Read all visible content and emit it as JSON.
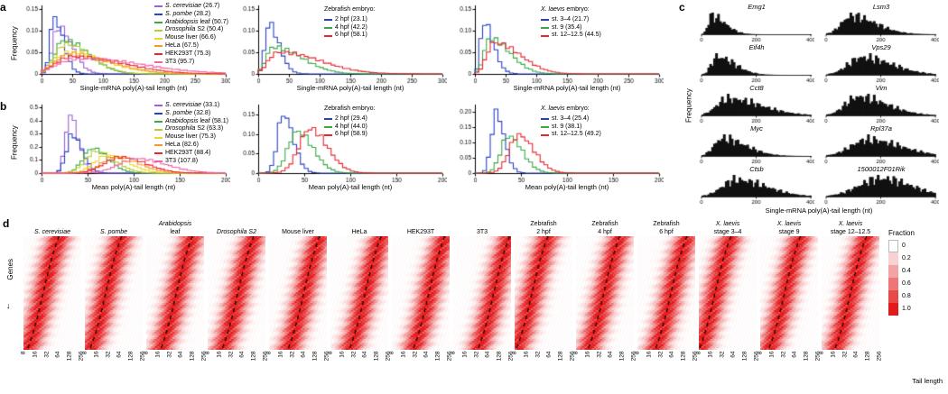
{
  "chart_data": {
    "panel_a": {
      "label": "a",
      "ylabel": "Frequency",
      "type": "step-histogram",
      "charts": [
        {
          "xlabel": "Single-mRNA poly(A)-tail length (nt)",
          "xlim": [
            0,
            300
          ],
          "ylim": [
            0,
            0.158
          ],
          "xticks": [
            0,
            50,
            100,
            150,
            200,
            250,
            300
          ],
          "xtick_labels": [
            "0",
            "50",
            "100",
            "150",
            "200",
            "250",
            "300"
          ],
          "yticks": [
            0,
            0.05,
            0.1,
            0.15
          ],
          "ytick_labels": [
            "0",
            "0.05",
            "0.10",
            "0.15"
          ],
          "legend": {
            "heading_italic": "",
            "heading_rest": ""
          },
          "series": [
            {
              "italic": "S. cerevisiae",
              "rest": " (26.7)",
              "mean": 26.7,
              "color": "#9e5fd0",
              "mode": 28,
              "peak": 0.112,
              "wl": 10,
              "wr": 22
            },
            {
              "italic": "S. pombe",
              "rest": " (28.2)",
              "mean": 28.2,
              "color": "#2840c4",
              "mode": 20,
              "peak": 0.138,
              "wl": 6,
              "wr": 15
            },
            {
              "italic": "Arabidopsis",
              "rest": " leaf (50.7)",
              "mean": 50.7,
              "color": "#39a845",
              "mode": 35,
              "peak": 0.078,
              "wl": 14,
              "wr": 40
            },
            {
              "italic": "Drosophila",
              "rest": " S2 (50.4)",
              "mean": 50.4,
              "color": "#b8cc2e",
              "mode": 38,
              "peak": 0.066,
              "wl": 16,
              "wr": 42
            },
            {
              "italic": "",
              "rest": "Mouse liver (66.6)",
              "mean": 66.6,
              "color": "#f2d22b",
              "mode": 45,
              "peak": 0.048,
              "wl": 22,
              "wr": 62
            },
            {
              "italic": "",
              "rest": "HeLa (67.5)",
              "mean": 67.5,
              "color": "#f29b2a",
              "mode": 48,
              "peak": 0.047,
              "wl": 24,
              "wr": 64
            },
            {
              "italic": "",
              "rest": "HEK293T (75.3)",
              "mean": 75.3,
              "color": "#e8262d",
              "mode": 50,
              "peak": 0.042,
              "wl": 26,
              "wr": 78
            },
            {
              "italic": "",
              "rest": "3T3 (95.7)",
              "mean": 95.7,
              "color": "#f263a6",
              "mode": 55,
              "peak": 0.036,
              "wl": 30,
              "wr": 105
            }
          ]
        },
        {
          "xlabel": "Single-mRNA poly(A)-tail length (nt)",
          "xlim": [
            0,
            300
          ],
          "ylim": [
            0,
            0.158
          ],
          "xticks": [
            0,
            50,
            100,
            150,
            200,
            250,
            300
          ],
          "xtick_labels": [
            "0",
            "50",
            "100",
            "150",
            "200",
            "250",
            "300"
          ],
          "yticks": [
            0,
            0.05,
            0.1,
            0.15
          ],
          "ytick_labels": [
            "0",
            "0.05",
            "0.10",
            "0.15"
          ],
          "legend": {
            "heading_italic": "",
            "heading_rest": "Zebrafish embryo:"
          },
          "series": [
            {
              "italic": "",
              "rest": "2 hpf (23.1)",
              "mean": 23.1,
              "color": "#2840c4",
              "mode": 17,
              "peak": 0.118,
              "wl": 6,
              "wr": 17
            },
            {
              "italic": "",
              "rest": "4 hpf (42.2)",
              "mean": 42.2,
              "color": "#39a845",
              "mode": 24,
              "peak": 0.065,
              "wl": 11,
              "wr": 45
            },
            {
              "italic": "",
              "rest": "6 hpf (58.1)",
              "mean": 58.1,
              "color": "#e8262d",
              "mode": 30,
              "peak": 0.05,
              "wl": 14,
              "wr": 68
            }
          ]
        },
        {
          "xlabel": "Single-mRNA poly(A)-tail length (nt)",
          "xlim": [
            0,
            300
          ],
          "ylim": [
            0,
            0.158
          ],
          "xticks": [
            0,
            50,
            100,
            150,
            200,
            250,
            300
          ],
          "xtick_labels": [
            "0",
            "50",
            "100",
            "150",
            "200",
            "250",
            "300"
          ],
          "yticks": [
            0,
            0.05,
            0.1,
            0.15
          ],
          "ytick_labels": [
            "0",
            "0.05",
            "0.10",
            "0.15"
          ],
          "legend": {
            "heading_italic": "X. laevis",
            "heading_rest": " embryo:"
          },
          "series": [
            {
              "italic": "",
              "rest": "st. 3–4 (21.7)",
              "mean": 21.7,
              "color": "#2840c4",
              "mode": 14,
              "peak": 0.122,
              "wl": 5,
              "wr": 16
            },
            {
              "italic": "",
              "rest": "st. 9 (35.4)",
              "mean": 35.4,
              "color": "#39a845",
              "mode": 24,
              "peak": 0.086,
              "wl": 9,
              "wr": 32
            },
            {
              "italic": "",
              "rest": "st. 12–12.5 (44.5)",
              "mean": 44.5,
              "color": "#e8262d",
              "mode": 30,
              "peak": 0.073,
              "wl": 11,
              "wr": 42
            }
          ]
        }
      ]
    },
    "panel_b": {
      "label": "b",
      "ylabel": "Frequency",
      "type": "step-histogram",
      "charts": [
        {
          "xlabel": "Mean poly(A)-tail length (nt)",
          "xlim": [
            0,
            200
          ],
          "ylim": [
            0,
            0.52
          ],
          "xticks": [
            0,
            50,
            100,
            150,
            200
          ],
          "xtick_labels": [
            "0",
            "50",
            "100",
            "150",
            "200"
          ],
          "yticks": [
            0,
            0.1,
            0.2,
            0.3,
            0.4,
            0.5
          ],
          "ytick_labels": [
            "0",
            "0.1",
            "0.2",
            "0.3",
            "0.4",
            "0.5"
          ],
          "legend": {
            "heading_italic": "",
            "heading_rest": ""
          },
          "series": [
            {
              "italic": "S. cerevisiae",
              "rest": " (33.1)",
              "mean": 33.1,
              "color": "#9e5fd0",
              "mode": 31,
              "peak": 0.46,
              "wl": 5,
              "wr": 9
            },
            {
              "italic": "S. pombe",
              "rest": " (32.8)",
              "mean": 32.8,
              "color": "#2840c4",
              "mode": 33,
              "peak": 0.3,
              "wl": 6,
              "wr": 11
            },
            {
              "italic": "Arabidopsis",
              "rest": " leaf (58.1)",
              "mean": 58.1,
              "color": "#39a845",
              "mode": 55,
              "peak": 0.18,
              "wl": 10,
              "wr": 17
            },
            {
              "italic": "Drosophila",
              "rest": " S2 (63.3)",
              "mean": 63.3,
              "color": "#b8cc2e",
              "mode": 60,
              "peak": 0.16,
              "wl": 12,
              "wr": 20
            },
            {
              "italic": "",
              "rest": "Mouse liver (75.3)",
              "mean": 75.3,
              "color": "#f2d22b",
              "mode": 72,
              "peak": 0.14,
              "wl": 14,
              "wr": 22
            },
            {
              "italic": "",
              "rest": "HeLa (82.6)",
              "mean": 82.6,
              "color": "#f29b2a",
              "mode": 80,
              "peak": 0.13,
              "wl": 15,
              "wr": 24
            },
            {
              "italic": "",
              "rest": "HEK293T (88.4)",
              "mean": 88.4,
              "color": "#e8262d",
              "mode": 85,
              "peak": 0.12,
              "wl": 17,
              "wr": 27
            },
            {
              "italic": "",
              "rest": "3T3 (107.8)",
              "mean": 107.8,
              "color": "#f263a6",
              "mode": 104,
              "peak": 0.105,
              "wl": 20,
              "wr": 32
            }
          ]
        },
        {
          "xlabel": "Mean poly(A)-tail length (nt)",
          "xlim": [
            0,
            200
          ],
          "ylim": [
            0,
            0.175
          ],
          "xticks": [
            0,
            50,
            100,
            150,
            200
          ],
          "xtick_labels": [
            "0",
            "50",
            "100",
            "150",
            "200"
          ],
          "yticks": [
            0,
            0.05,
            0.1,
            0.15
          ],
          "ytick_labels": [
            "0",
            "0.05",
            "0.10",
            "0.15"
          ],
          "legend": {
            "heading_italic": "",
            "heading_rest": "Zebrafish embryo:"
          },
          "series": [
            {
              "italic": "",
              "rest": "2 hpf (29.4)",
              "mean": 29.4,
              "color": "#2840c4",
              "mode": 27,
              "peak": 0.158,
              "wl": 6,
              "wr": 11
            },
            {
              "italic": "",
              "rest": "4 hpf (44.0)",
              "mean": 44.0,
              "color": "#39a845",
              "mode": 42,
              "peak": 0.108,
              "wl": 10,
              "wr": 17
            },
            {
              "italic": "",
              "rest": "6 hpf (58.9)",
              "mean": 58.9,
              "color": "#e8262d",
              "mode": 56,
              "peak": 0.108,
              "wl": 12,
              "wr": 19
            }
          ]
        },
        {
          "xlabel": "Mean poly(A)-tail length (nt)",
          "xlim": [
            0,
            200
          ],
          "ylim": [
            0,
            0.225
          ],
          "xticks": [
            0,
            50,
            100,
            150,
            200
          ],
          "xtick_labels": [
            "0",
            "50",
            "100",
            "150",
            "200"
          ],
          "yticks": [
            0,
            0.05,
            0.1,
            0.15,
            0.2
          ],
          "ytick_labels": [
            "0",
            "0.05",
            "0.10",
            "0.15",
            "0.20"
          ],
          "legend": {
            "heading_italic": "X. laevis",
            "heading_rest": " embryo:"
          },
          "series": [
            {
              "italic": "",
              "rest": "st. 3–4 (25.4)",
              "mean": 25.4,
              "color": "#2840c4",
              "mode": 23,
              "peak": 0.205,
              "wl": 5,
              "wr": 9
            },
            {
              "italic": "",
              "rest": "st. 9 (38.1)",
              "mean": 38.1,
              "color": "#39a845",
              "mode": 36,
              "peak": 0.125,
              "wl": 8,
              "wr": 15
            },
            {
              "italic": "",
              "rest": "st. 12–12.5 (49.2)",
              "mean": 49.2,
              "color": "#e8262d",
              "mode": 47,
              "peak": 0.12,
              "wl": 10,
              "wr": 17
            }
          ]
        }
      ]
    },
    "panel_c": {
      "label": "c",
      "ylabel": "Frequency",
      "xlabel": "Single-mRNA poly(A)-tail length (nt)",
      "type": "histogram-small-multiples",
      "xlim": [
        0,
        400
      ],
      "xticks": [
        0,
        200,
        400
      ],
      "xtick_labels": [
        "0",
        "200",
        "400"
      ],
      "bar_color": "#111111",
      "genes": [
        {
          "name": "Emg1",
          "mode": 35,
          "wl": 12,
          "wr": 50
        },
        {
          "name": "Lsm3",
          "mode": 90,
          "wl": 35,
          "wr": 90
        },
        {
          "name": "Eif4h",
          "mode": 55,
          "wl": 20,
          "wr": 65
        },
        {
          "name": "Vps29",
          "mode": 130,
          "wl": 50,
          "wr": 110
        },
        {
          "name": "Cct8",
          "mode": 95,
          "wl": 40,
          "wr": 120
        },
        {
          "name": "Vim",
          "mode": 115,
          "wl": 45,
          "wr": 105
        },
        {
          "name": "Myc",
          "mode": 75,
          "wl": 30,
          "wr": 85
        },
        {
          "name": "Rpl37a",
          "mode": 150,
          "wl": 60,
          "wr": 120
        },
        {
          "name": "Ctsb",
          "mode": 125,
          "wl": 50,
          "wr": 110
        },
        {
          "name": "1500012F01Rik",
          "mode": 200,
          "wl": 80,
          "wr": 110
        }
      ]
    },
    "panel_d": {
      "label": "d",
      "ylabel": "Genes",
      "xlabel": "Tail length",
      "type": "heatmap",
      "xlog2_range": [
        3,
        8
      ],
      "xtick_labels": [
        "8",
        "16",
        "32",
        "64",
        "128",
        "256"
      ],
      "row_spread": 1.35,
      "colorbar": {
        "title": "Fraction",
        "tick_labels": [
          "0",
          "0.2",
          "0.4",
          "0.6",
          "0.8",
          "1.0"
        ],
        "min_color": "#ffffff",
        "max_color": "#e31a1c"
      },
      "columns": [
        {
          "lines": [
            {
              "text": "S. cerevisiae",
              "italic": true
            }
          ],
          "center": 4.7
        },
        {
          "lines": [
            {
              "text": "S. pombe",
              "italic": true
            }
          ],
          "center": 4.8
        },
        {
          "lines": [
            {
              "text": "Arabidopsis",
              "italic": true
            },
            {
              "text": "leaf",
              "italic": false
            }
          ],
          "center": 5.6
        },
        {
          "lines": [
            {
              "text": "Drosophila S2",
              "italic": true
            }
          ],
          "center": 5.6
        },
        {
          "lines": [
            {
              "text": "Mouse liver",
              "italic": false
            }
          ],
          "center": 6.0
        },
        {
          "lines": [
            {
              "text": "HeLa",
              "italic": false
            }
          ],
          "center": 6.0
        },
        {
          "lines": [
            {
              "text": "HEK293T",
              "italic": false
            }
          ],
          "center": 6.2
        },
        {
          "lines": [
            {
              "text": "3T3",
              "italic": false
            }
          ],
          "center": 6.5
        },
        {
          "lines": [
            {
              "text": "Zebrafish",
              "italic": false
            },
            {
              "text": "2 hpf",
              "italic": false
            }
          ],
          "center": 4.5
        },
        {
          "lines": [
            {
              "text": "Zebrafish",
              "italic": false
            },
            {
              "text": "4 hpf",
              "italic": false
            }
          ],
          "center": 5.4
        },
        {
          "lines": [
            {
              "text": "Zebrafish",
              "italic": false
            },
            {
              "text": "6 hpf",
              "italic": false
            }
          ],
          "center": 5.9
        },
        {
          "lines": [
            {
              "text": "X. laevis",
              "italic": true
            },
            {
              "text": "stage 3–4",
              "italic": false
            }
          ],
          "center": 4.4
        },
        {
          "lines": [
            {
              "text": "X. laevis",
              "italic": true
            },
            {
              "text": "stage 9",
              "italic": false
            }
          ],
          "center": 5.1
        },
        {
          "lines": [
            {
              "text": "X. laevis",
              "italic": true
            },
            {
              "text": "stage 12–12.5",
              "italic": false
            }
          ],
          "center": 5.5
        }
      ]
    }
  }
}
